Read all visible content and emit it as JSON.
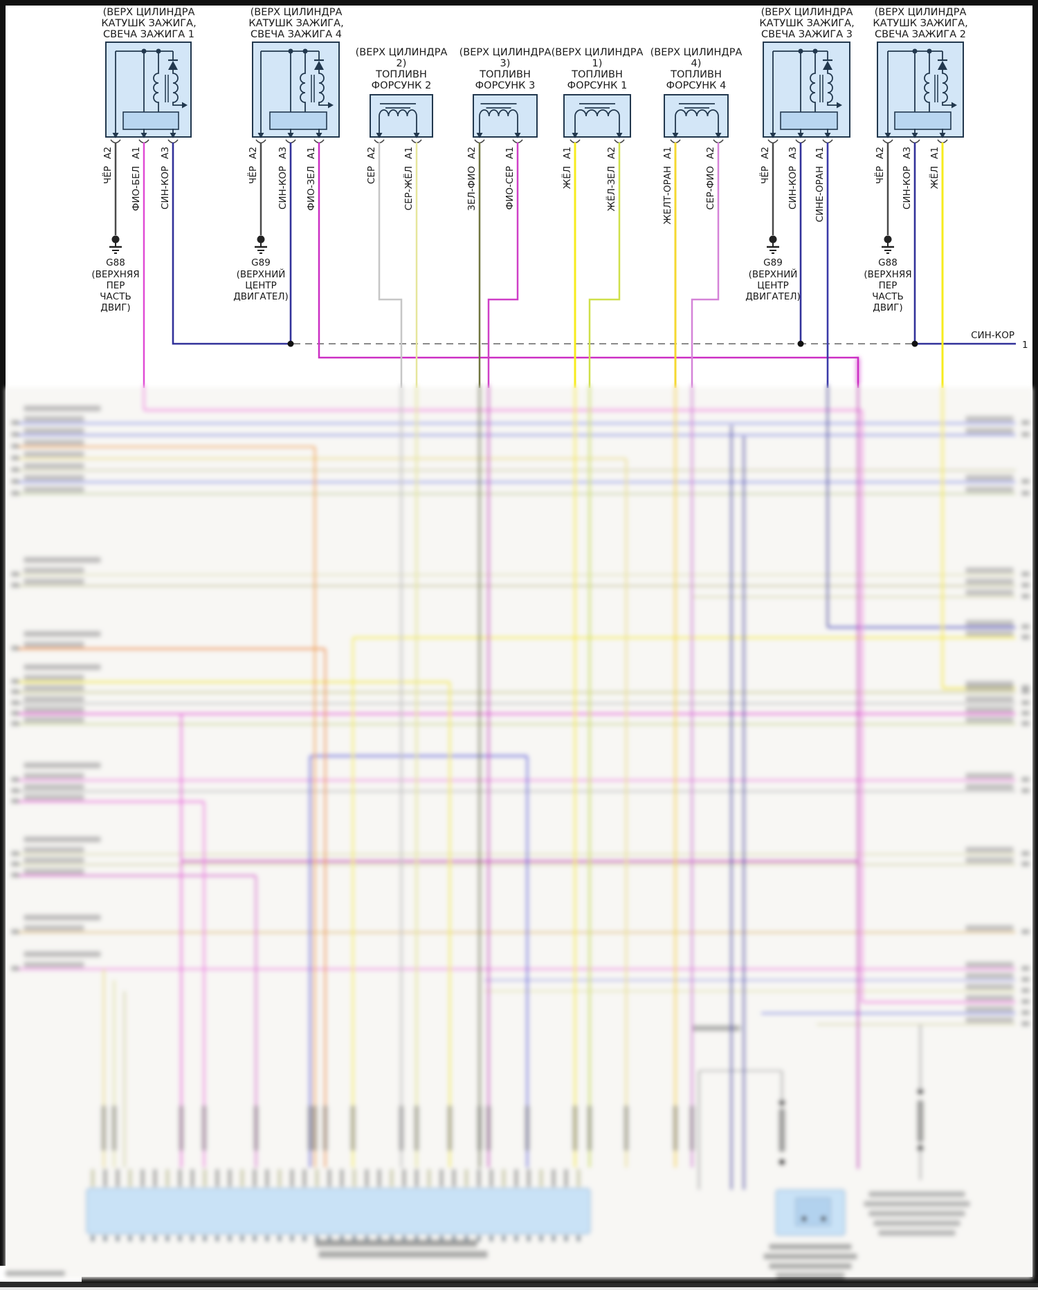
{
  "diagram": {
    "bus": {
      "label": "СИН-КОР",
      "sheet_ref": "1"
    },
    "components": [
      {
        "id": "ignition-coil-1",
        "type": "ignition-coil",
        "label_lines": [
          "(ВЕРХ ЦИЛИНДРА",
          "КАТУШК ЗАЖИГА,",
          "СВЕЧА ЗАЖИГА 1"
        ],
        "pins": [
          {
            "pin": "A2",
            "wire": "ЧЁР"
          },
          {
            "pin": "A1",
            "wire": "ФИО-БЕЛ"
          },
          {
            "pin": "A3",
            "wire": "СИН-КОР"
          }
        ]
      },
      {
        "id": "ignition-coil-4",
        "type": "ignition-coil",
        "label_lines": [
          "(ВЕРХ ЦИЛИНДРА",
          "КАТУШК ЗАЖИГА,",
          "СВЕЧА ЗАЖИГА 4"
        ],
        "pins": [
          {
            "pin": "A2",
            "wire": "ЧЁР"
          },
          {
            "pin": "A3",
            "wire": "СИН-КОР"
          },
          {
            "pin": "A1",
            "wire": "ФИО-ЗЕЛ"
          }
        ]
      },
      {
        "id": "fuel-injector-2",
        "type": "fuel-injector",
        "label_lines": [
          "(ВЕРХ ЦИЛИНДРА",
          "2)",
          "ТОПЛИВН",
          "ФОРСУНК 2"
        ],
        "pins": [
          {
            "pin": "A2",
            "wire": "СЕР"
          },
          {
            "pin": "A1",
            "wire": "СЕР-ЖЁЛ"
          }
        ]
      },
      {
        "id": "fuel-injector-3",
        "type": "fuel-injector",
        "label_lines": [
          "(ВЕРХ ЦИЛИНДРА",
          "3)",
          "ТОПЛИВН",
          "ФОРСУНК 3"
        ],
        "pins": [
          {
            "pin": "A2",
            "wire": "ЗЕЛ-ФИО"
          },
          {
            "pin": "A1",
            "wire": "ФИО-СЕР"
          }
        ]
      },
      {
        "id": "fuel-injector-1",
        "type": "fuel-injector",
        "label_lines": [
          "(ВЕРХ ЦИЛИНДРА",
          "1)",
          "ТОПЛИВН",
          "ФОРСУНК 1"
        ],
        "pins": [
          {
            "pin": "A1",
            "wire": "ЖЁЛ"
          },
          {
            "pin": "A2",
            "wire": "ЖЁЛ-ЗЕЛ"
          }
        ]
      },
      {
        "id": "fuel-injector-4",
        "type": "fuel-injector",
        "label_lines": [
          "(ВЕРХ ЦИЛИНДРА",
          "4)",
          "ТОПЛИВН",
          "ФОРСУНК 4"
        ],
        "pins": [
          {
            "pin": "A1",
            "wire": "ЖЕЛТ-ОРАН"
          },
          {
            "pin": "A2",
            "wire": "СЕР-ФИО"
          }
        ]
      },
      {
        "id": "ignition-coil-3",
        "type": "ignition-coil",
        "label_lines": [
          "(ВЕРХ ЦИЛИНДРА",
          "КАТУШК ЗАЖИГА,",
          "СВЕЧА ЗАЖИГА 3"
        ],
        "pins": [
          {
            "pin": "A2",
            "wire": "ЧЁР"
          },
          {
            "pin": "A3",
            "wire": "СИН-КОР"
          },
          {
            "pin": "A1",
            "wire": "СИНЕ-ОРАН"
          }
        ]
      },
      {
        "id": "ignition-coil-2",
        "type": "ignition-coil",
        "label_lines": [
          "(ВЕРХ ЦИЛИНДРА",
          "КАТУШК ЗАЖИГА,",
          "СВЕЧА ЗАЖИГА 2"
        ],
        "pins": [
          {
            "pin": "A2",
            "wire": "ЧЁР"
          },
          {
            "pin": "A3",
            "wire": "СИН-КОР"
          },
          {
            "pin": "A1",
            "wire": "ЖЁЛ"
          }
        ]
      }
    ],
    "grounds": [
      {
        "id": "G88",
        "lines": [
          "(ВЕРХНЯЯ",
          "ПЕР",
          "ЧАСТЬ",
          "ДВИГ)"
        ]
      },
      {
        "id": "G89",
        "lines": [
          "(ВЕРХНИЙ",
          "ЦЕНТР",
          "ДВИГАТЕЛ)"
        ]
      },
      {
        "id": "G89",
        "lines": [
          "(ВЕРХНИЙ",
          "ЦЕНТР",
          "ДВИГАТЕЛ)"
        ]
      },
      {
        "id": "G88",
        "lines": [
          "(ВЕРХНЯЯ",
          "ПЕР",
          "ЧАСТЬ",
          "ДВИГ)"
        ]
      }
    ],
    "wire_colors": {
      "ЧЁР": "#4a4a4a",
      "ФИО-БЕЛ": "#e04bd5",
      "СИН-КОР": "#32329a",
      "ФИО-ЗЕЛ": "#cc2fc4",
      "СЕР": "#c6c6c6",
      "СЕР-ЖЁЛ": "#e6e69c",
      "ЗЕЛ-ФИО": "#70753f",
      "ФИО-СЕР": "#cf3fc7",
      "ЖЁЛ": "#f7ec1e",
      "ЖЁЛ-ЗЕЛ": "#cfe04a",
      "ЖЕЛТ-ОРАН": "#f5d832",
      "СЕР-ФИО": "#d583d8",
      "СИНЕ-ОРАН": "#3a3aa8"
    }
  }
}
